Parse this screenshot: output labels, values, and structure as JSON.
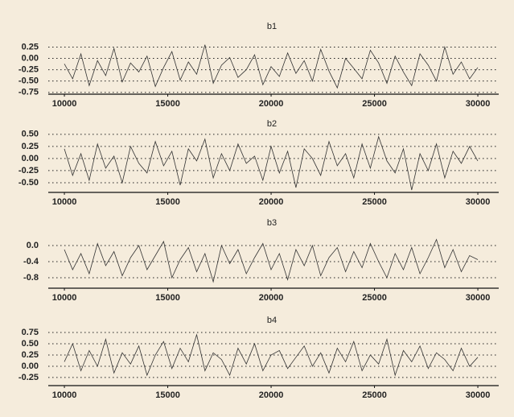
{
  "chart_data": [
    {
      "type": "line",
      "title": "b1",
      "color": "#333333",
      "grid": true,
      "x": [
        10000,
        10400,
        10800,
        11200,
        11600,
        12000,
        12400,
        12800,
        13200,
        13600,
        14000,
        14400,
        14800,
        15200,
        15600,
        16000,
        16400,
        16800,
        17200,
        17600,
        18000,
        18400,
        18800,
        19200,
        19600,
        20000,
        20400,
        20800,
        21200,
        21600,
        22000,
        22400,
        22800,
        23200,
        23600,
        24000,
        24400,
        24800,
        25200,
        25600,
        26000,
        26400,
        26800,
        27200,
        27600,
        28000,
        28400,
        28800,
        29200,
        29600,
        30000
      ],
      "values": [
        -0.12,
        -0.45,
        0.1,
        -0.6,
        -0.05,
        -0.38,
        0.22,
        -0.52,
        -0.1,
        -0.3,
        0.05,
        -0.62,
        -0.2,
        0.15,
        -0.48,
        -0.08,
        -0.35,
        0.3,
        -0.55,
        -0.15,
        0.02,
        -0.42,
        -0.25,
        0.08,
        -0.58,
        -0.18,
        -0.4,
        0.12,
        -0.33,
        -0.05,
        -0.5,
        0.2,
        -0.28,
        -0.65,
        0.0,
        -0.22,
        -0.45,
        0.18,
        -0.1,
        -0.55,
        0.05,
        -0.3,
        -0.6,
        0.1,
        -0.15,
        -0.5,
        0.25,
        -0.35,
        -0.08,
        -0.45,
        -0.2
      ],
      "xlim": [
        9220,
        31010
      ],
      "xticks": [
        10000,
        15000,
        20000,
        25000,
        30000
      ],
      "ylim": [
        -0.79,
        0.4
      ],
      "yticks": [
        0.25,
        {
          "value": 0,
          "label": "0.00"
        },
        -0.25,
        {
          "value": -0.5,
          "label": "-0.50"
        },
        -0.75
      ]
    },
    {
      "type": "line",
      "title": "b2",
      "color": "#333333",
      "grid": true,
      "x": [
        10000,
        10400,
        10800,
        11200,
        11600,
        12000,
        12400,
        12800,
        13200,
        13600,
        14000,
        14400,
        14800,
        15200,
        15600,
        16000,
        16400,
        16800,
        17200,
        17600,
        18000,
        18400,
        18800,
        19200,
        19600,
        20000,
        20400,
        20800,
        21200,
        21600,
        22000,
        22400,
        22800,
        23200,
        23600,
        24000,
        24400,
        24800,
        25200,
        25600,
        26000,
        26400,
        26800,
        27200,
        27600,
        28000,
        28400,
        28800,
        29200,
        29600,
        30000
      ],
      "values": [
        0.2,
        -0.35,
        0.1,
        -0.45,
        0.3,
        -0.2,
        0.05,
        -0.5,
        0.25,
        -0.1,
        -0.3,
        0.35,
        -0.15,
        0.15,
        -0.55,
        0.2,
        -0.05,
        0.4,
        -0.4,
        0.1,
        -0.25,
        0.3,
        -0.1,
        0.05,
        -0.45,
        0.25,
        -0.3,
        0.15,
        -0.6,
        0.2,
        0.0,
        -0.35,
        0.35,
        -0.15,
        0.1,
        -0.4,
        0.3,
        -0.2,
        0.45,
        -0.05,
        -0.3,
        0.2,
        -0.65,
        0.1,
        -0.25,
        0.3,
        -0.4,
        0.15,
        -0.1,
        0.25,
        -0.05
      ],
      "xlim": [
        9220,
        31010
      ],
      "xticks": [
        10000,
        15000,
        20000,
        25000,
        30000
      ],
      "ylim": [
        -0.7,
        0.58
      ],
      "yticks": [
        {
          "value": 0.5,
          "label": "0.50"
        },
        0.25,
        {
          "value": 0,
          "label": "0.00"
        },
        -0.25,
        {
          "value": -0.5,
          "label": "-0.50"
        }
      ]
    },
    {
      "type": "line",
      "title": "b3",
      "color": "#333333",
      "grid": true,
      "x": [
        10000,
        10400,
        10800,
        11200,
        11600,
        12000,
        12400,
        12800,
        13200,
        13600,
        14000,
        14400,
        14800,
        15200,
        15600,
        16000,
        16400,
        16800,
        17200,
        17600,
        18000,
        18400,
        18800,
        19200,
        19600,
        20000,
        20400,
        20800,
        21200,
        21600,
        22000,
        22400,
        22800,
        23200,
        23600,
        24000,
        24400,
        24800,
        25200,
        25600,
        26000,
        26400,
        26800,
        27200,
        27600,
        28000,
        28400,
        28800,
        29200,
        29600,
        30000
      ],
      "values": [
        -0.1,
        -0.6,
        -0.2,
        -0.7,
        0.05,
        -0.5,
        -0.15,
        -0.75,
        -0.3,
        0.0,
        -0.6,
        -0.25,
        0.1,
        -0.8,
        -0.35,
        -0.05,
        -0.65,
        -0.2,
        -0.9,
        0.0,
        -0.45,
        -0.1,
        -0.7,
        -0.3,
        0.05,
        -0.6,
        -0.2,
        -0.85,
        -0.1,
        -0.5,
        0.0,
        -0.75,
        -0.3,
        -0.05,
        -0.65,
        -0.15,
        -0.55,
        0.05,
        -0.4,
        -0.8,
        -0.2,
        -0.6,
        -0.05,
        -0.7,
        -0.3,
        0.15,
        -0.55,
        -0.1,
        -0.65,
        -0.25,
        -0.35
      ],
      "xlim": [
        9220,
        31010
      ],
      "xticks": [
        10000,
        15000,
        20000,
        25000,
        30000
      ],
      "ylim": [
        -1.06,
        0.3
      ],
      "yticks": [
        {
          "value": 0,
          "label": "0.0"
        },
        -0.4,
        -0.8
      ]
    },
    {
      "type": "line",
      "title": "b4",
      "color": "#333333",
      "grid": true,
      "x": [
        10000,
        10400,
        10800,
        11200,
        11600,
        12000,
        12400,
        12800,
        13200,
        13600,
        14000,
        14400,
        14800,
        15200,
        15600,
        16000,
        16400,
        16800,
        17200,
        17600,
        18000,
        18400,
        18800,
        19200,
        19600,
        20000,
        20400,
        20800,
        21200,
        21600,
        22000,
        22400,
        22800,
        23200,
        23600,
        24000,
        24400,
        24800,
        25200,
        25600,
        26000,
        26400,
        26800,
        27200,
        27600,
        28000,
        28400,
        28800,
        29200,
        29600,
        30000
      ],
      "values": [
        0.1,
        0.5,
        -0.1,
        0.35,
        0.0,
        0.6,
        -0.15,
        0.3,
        0.05,
        0.45,
        -0.2,
        0.25,
        0.55,
        -0.05,
        0.4,
        0.1,
        0.7,
        -0.1,
        0.3,
        0.15,
        -0.2,
        0.4,
        0.05,
        0.5,
        -0.1,
        0.25,
        0.35,
        -0.05,
        0.2,
        0.45,
        0.0,
        0.3,
        -0.15,
        0.4,
        0.1,
        0.55,
        -0.1,
        0.25,
        0.05,
        0.6,
        -0.2,
        0.35,
        0.1,
        0.45,
        -0.05,
        0.3,
        0.15,
        -0.1,
        0.4,
        0.0,
        0.2
      ],
      "xlim": [
        9220,
        31010
      ],
      "xticks": [
        10000,
        15000,
        20000,
        25000,
        30000
      ],
      "ylim": [
        -0.43,
        0.84
      ],
      "yticks": [
        0.75,
        {
          "value": 0.5,
          "label": "0.50"
        },
        0.25,
        {
          "value": 0,
          "label": "0.00"
        },
        -0.25
      ]
    }
  ]
}
